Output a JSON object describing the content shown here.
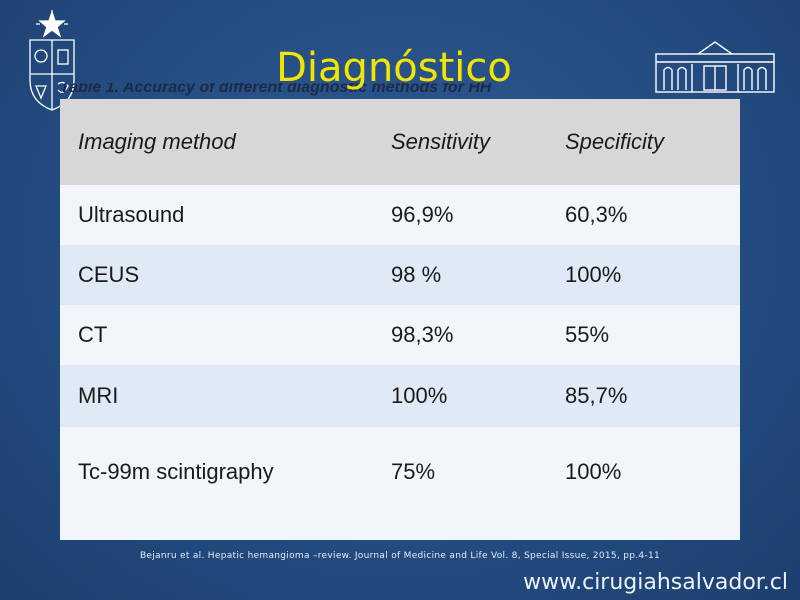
{
  "slide": {
    "title": "Diagnóstico",
    "partial_caption": "Table 1. Accuracy of different diagnostic methods for HH",
    "citation": "Bejanru et al. Hepatic hemangioma –review. Journal of Medicine and Life Vol. 8, Special Issue, 2015, pp.4-11",
    "website": "www.cirugiahsalvador.cl"
  },
  "logos": {
    "left": "university-crest",
    "right": "hospital-building"
  },
  "table": {
    "headers": [
      "Imaging method",
      "Sensitivity",
      "Specificity"
    ],
    "rows": [
      [
        "Ultrasound",
        "96,9%",
        "60,3%"
      ],
      [
        "CEUS",
        "98 %",
        "100%"
      ],
      [
        "CT",
        "98,3%",
        "55%"
      ],
      [
        "MRI",
        "100%",
        "85,7%"
      ],
      [
        "Tc-99m scintigraphy",
        "75%",
        "100%"
      ]
    ]
  },
  "colors": {
    "background": "#244d82",
    "title": "#f2e600",
    "header_fill": "#d7d7d7",
    "row_shaded": "#dfeaf6",
    "row_plain": "#f1f6fb"
  }
}
